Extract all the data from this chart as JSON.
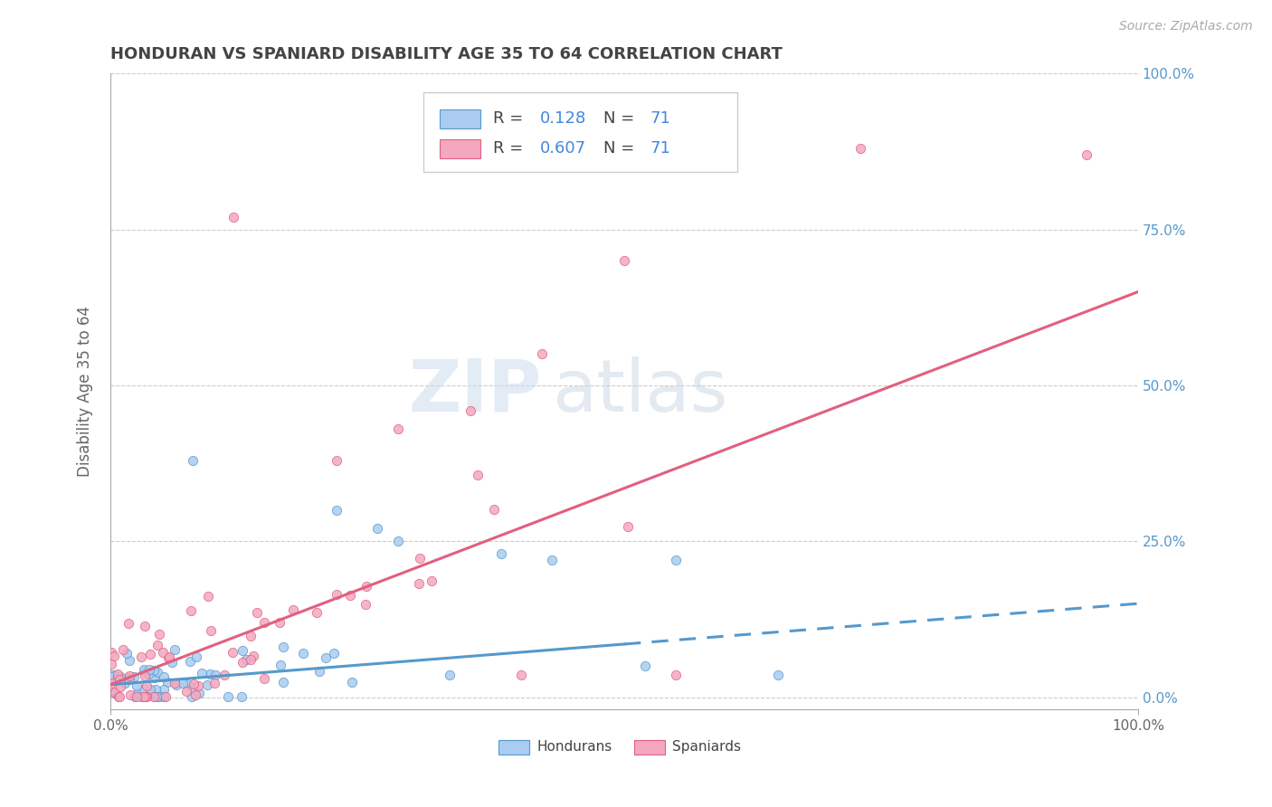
{
  "title": "HONDURAN VS SPANIARD DISABILITY AGE 35 TO 64 CORRELATION CHART",
  "source_text": "Source: ZipAtlas.com",
  "ylabel": "Disability Age 35 to 64",
  "xlim": [
    0,
    1
  ],
  "ylim": [
    -0.02,
    1.0
  ],
  "xtick_labels": [
    "0.0%",
    "100.0%"
  ],
  "ytick_labels": [
    "0.0%",
    "25.0%",
    "50.0%",
    "75.0%",
    "100.0%"
  ],
  "ytick_positions": [
    0,
    0.25,
    0.5,
    0.75,
    1.0
  ],
  "honduran_R": 0.128,
  "honduran_N": 71,
  "spaniard_R": 0.607,
  "spaniard_N": 71,
  "honduran_color": "#aaccf0",
  "spaniard_color": "#f4a8c0",
  "honduran_line_color": "#5599cc",
  "spaniard_line_color": "#e06080",
  "background_color": "#ffffff",
  "grid_color": "#cccccc",
  "title_color": "#444444",
  "axis_label_color": "#666666",
  "right_tick_color": "#5599cc",
  "watermark_color_zip": "#ccddee",
  "watermark_color_atlas": "#bbccdd",
  "honduran_slope": 0.13,
  "honduran_intercept": 0.02,
  "honduran_line_end_solid": 0.5,
  "spaniard_slope": 0.63,
  "spaniard_intercept": 0.02
}
